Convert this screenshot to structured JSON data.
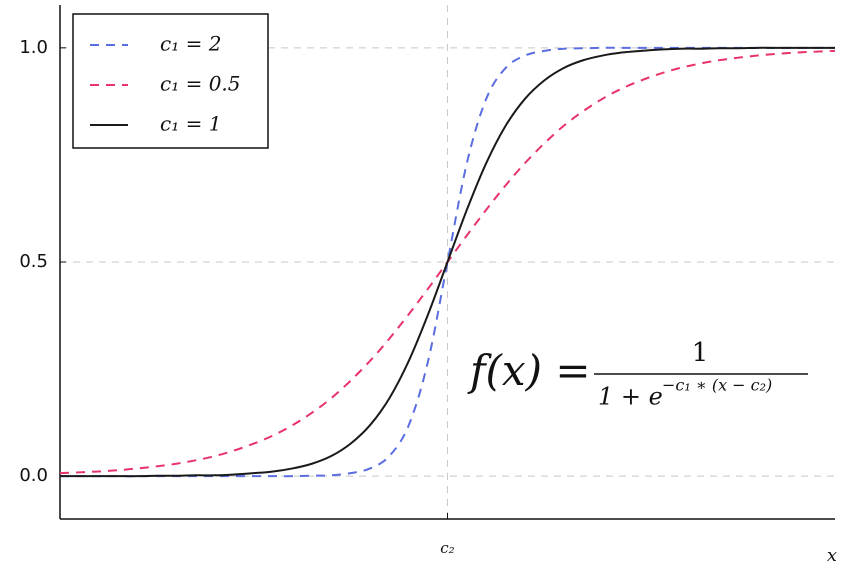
{
  "chart_data": {
    "type": "line",
    "x": [
      -10,
      -9.5,
      -9,
      -8.5,
      -8,
      -7.5,
      -7,
      -6.5,
      -6,
      -5.5,
      -5,
      -4.5,
      -4,
      -3.5,
      -3,
      -2.5,
      -2,
      -1.5,
      -1,
      -0.5,
      0,
      0.5,
      1,
      1.5,
      2,
      2.5,
      3,
      3.5,
      4,
      4.5,
      5,
      5.5,
      6,
      6.5,
      7,
      7.5,
      8,
      8.5,
      9,
      9.5,
      10
    ],
    "series": [
      {
        "name": "c₁ = 2",
        "color": "#5a6ee0",
        "dashed": true,
        "values": [
          0,
          0,
          0,
          0,
          0,
          0,
          0,
          0,
          0,
          0,
          0,
          0,
          0,
          0.001,
          0.002,
          0.007,
          0.018,
          0.047,
          0.119,
          0.269,
          0.5,
          0.731,
          0.881,
          0.953,
          0.982,
          0.993,
          0.998,
          0.999,
          1,
          1,
          1,
          1,
          1,
          1,
          1,
          1,
          1,
          1,
          1,
          1,
          1
        ]
      },
      {
        "name": "c₁ = 0.5",
        "color": "#e8336a",
        "dashed": true,
        "values": [
          0.007,
          0.009,
          0.011,
          0.014,
          0.018,
          0.023,
          0.029,
          0.037,
          0.047,
          0.06,
          0.076,
          0.095,
          0.119,
          0.148,
          0.182,
          0.223,
          0.269,
          0.321,
          0.378,
          0.438,
          0.5,
          0.562,
          0.622,
          0.679,
          0.731,
          0.777,
          0.818,
          0.852,
          0.881,
          0.905,
          0.924,
          0.94,
          0.953,
          0.963,
          0.971,
          0.977,
          0.982,
          0.986,
          0.989,
          0.991,
          0.993
        ]
      },
      {
        "name": "c₁ = 1",
        "color": "#1a1a1a",
        "dashed": false,
        "values": [
          0,
          0,
          0,
          0,
          0,
          0.001,
          0.001,
          0.002,
          0.002,
          0.004,
          0.007,
          0.011,
          0.018,
          0.029,
          0.047,
          0.076,
          0.119,
          0.182,
          0.269,
          0.378,
          0.5,
          0.622,
          0.731,
          0.818,
          0.881,
          0.924,
          0.953,
          0.971,
          0.982,
          0.989,
          0.993,
          0.996,
          0.998,
          0.998,
          0.999,
          0.999,
          1,
          1,
          1,
          1,
          1
        ]
      }
    ],
    "xlabel": "x",
    "xlim": [
      -10,
      10
    ],
    "xticks": [
      {
        "value": 0,
        "label": "c₂"
      }
    ],
    "ylim": [
      -0.1,
      1.1
    ],
    "yticks": [
      {
        "value": 0,
        "label": "0.0"
      },
      0.5,
      {
        "value": 1,
        "label": "1.0"
      }
    ],
    "grid": true,
    "legend": "upper-left",
    "annotation": {
      "lhs": "f(x) =",
      "numerator": "1",
      "denominator": "1 + e",
      "exponent": "−c₁ ∗ (x − c₂)"
    }
  }
}
